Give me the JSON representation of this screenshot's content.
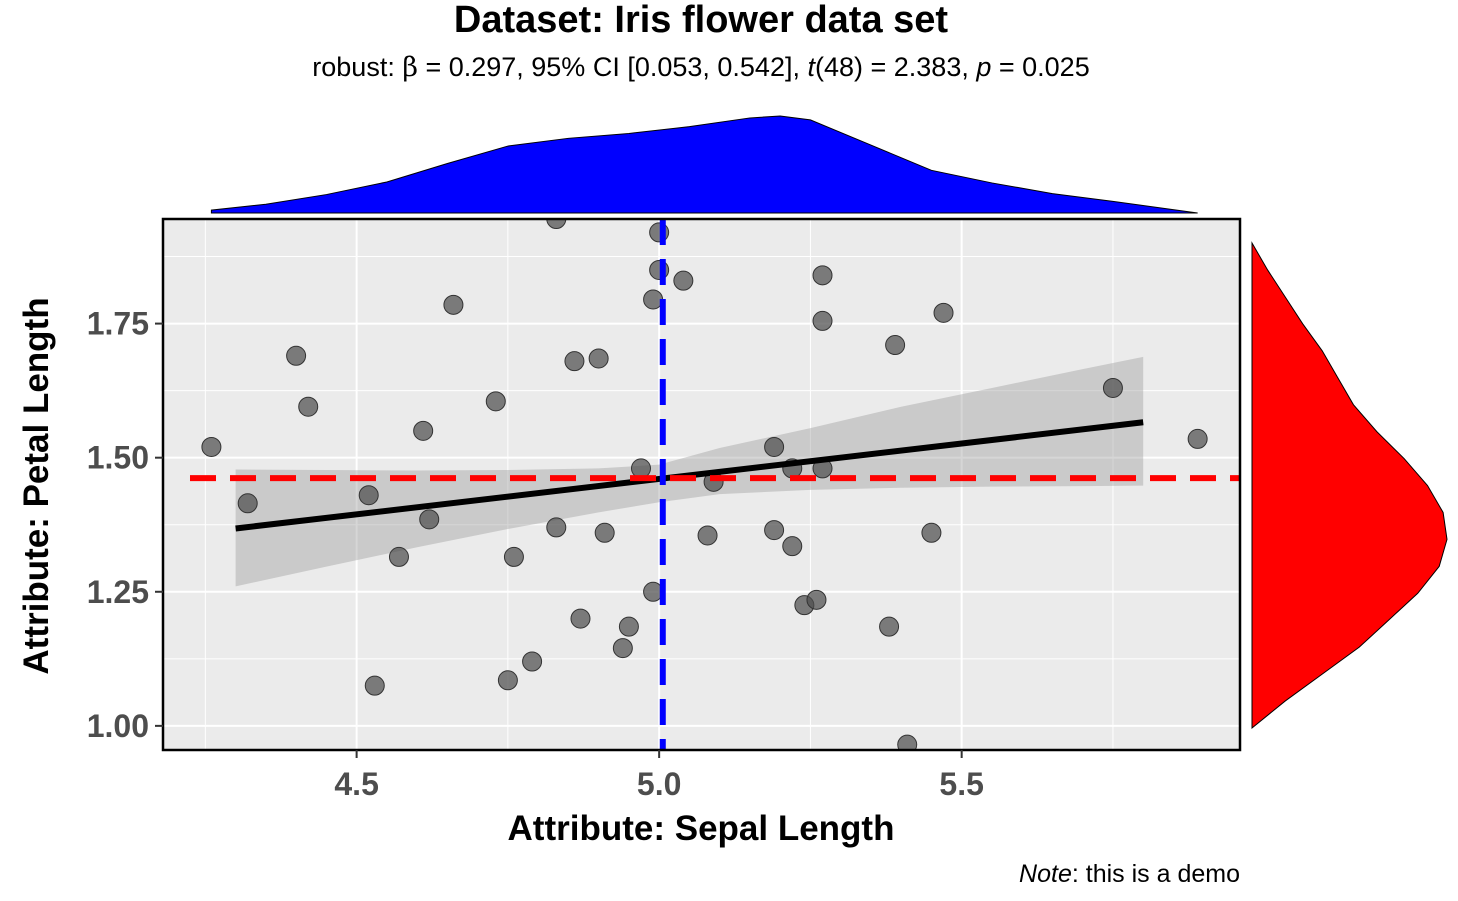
{
  "chart_data": {
    "type": "scatter",
    "title": "Dataset: Iris flower data set",
    "subtitle": {
      "prefix": "robust: ",
      "beta_symbol": "β",
      "mid": " = 0.297, 95% CI [0.053, 0.542], ",
      "t": "t",
      "t_tail": "(48) = 2.383, ",
      "p": "p",
      "p_tail": " = 0.025"
    },
    "xlabel": "Attribute: Sepal Length",
    "ylabel": "Attribute: Petal Length",
    "caption": {
      "note": "Note",
      "rest": ": this is a demo"
    },
    "xlim": [
      4.18,
      5.96
    ],
    "ylim": [
      0.955,
      1.945
    ],
    "x_ticks": [
      4.5,
      5.0,
      5.5
    ],
    "x_tick_labels": [
      "4.5",
      "5.0",
      "5.5"
    ],
    "y_ticks": [
      1.0,
      1.25,
      1.5,
      1.75
    ],
    "y_tick_labels": [
      "1.00",
      "1.25",
      "1.50",
      "1.75"
    ],
    "grid": true,
    "points": [
      {
        "x": 4.26,
        "y": 1.52
      },
      {
        "x": 4.32,
        "y": 1.415
      },
      {
        "x": 4.4,
        "y": 1.69
      },
      {
        "x": 4.42,
        "y": 1.595
      },
      {
        "x": 4.52,
        "y": 1.43
      },
      {
        "x": 4.53,
        "y": 1.075
      },
      {
        "x": 4.57,
        "y": 1.315
      },
      {
        "x": 4.61,
        "y": 1.55
      },
      {
        "x": 4.62,
        "y": 1.385
      },
      {
        "x": 4.66,
        "y": 1.785
      },
      {
        "x": 4.73,
        "y": 1.605
      },
      {
        "x": 4.75,
        "y": 1.085
      },
      {
        "x": 4.76,
        "y": 1.315
      },
      {
        "x": 4.79,
        "y": 1.12
      },
      {
        "x": 4.83,
        "y": 1.945
      },
      {
        "x": 4.83,
        "y": 1.37
      },
      {
        "x": 4.86,
        "y": 1.68
      },
      {
        "x": 4.87,
        "y": 1.2
      },
      {
        "x": 4.9,
        "y": 1.685
      },
      {
        "x": 4.91,
        "y": 1.36
      },
      {
        "x": 4.94,
        "y": 1.145
      },
      {
        "x": 4.95,
        "y": 1.185
      },
      {
        "x": 4.97,
        "y": 1.48
      },
      {
        "x": 4.99,
        "y": 1.25
      },
      {
        "x": 4.99,
        "y": 1.795
      },
      {
        "x": 5.0,
        "y": 1.85
      },
      {
        "x": 5.0,
        "y": 1.92
      },
      {
        "x": 5.04,
        "y": 1.83
      },
      {
        "x": 5.09,
        "y": 1.455
      },
      {
        "x": 5.08,
        "y": 1.355
      },
      {
        "x": 5.19,
        "y": 1.52
      },
      {
        "x": 5.19,
        "y": 1.365
      },
      {
        "x": 5.22,
        "y": 1.48
      },
      {
        "x": 5.22,
        "y": 1.335
      },
      {
        "x": 5.24,
        "y": 1.225
      },
      {
        "x": 5.26,
        "y": 1.235
      },
      {
        "x": 5.27,
        "y": 1.48
      },
      {
        "x": 5.27,
        "y": 1.84
      },
      {
        "x": 5.27,
        "y": 1.755
      },
      {
        "x": 5.38,
        "y": 1.185
      },
      {
        "x": 5.39,
        "y": 1.71
      },
      {
        "x": 5.41,
        "y": 0.965
      },
      {
        "x": 5.45,
        "y": 1.36
      },
      {
        "x": 5.47,
        "y": 1.77
      },
      {
        "x": 5.75,
        "y": 1.63
      },
      {
        "x": 5.89,
        "y": 1.535
      }
    ],
    "fit_line": {
      "x": [
        4.3,
        5.8
      ],
      "y": [
        1.368,
        1.566
      ]
    },
    "confidence_band": {
      "x": [
        4.3,
        4.45,
        4.6,
        4.75,
        4.9,
        5.0,
        5.1,
        5.25,
        5.4,
        5.55,
        5.7,
        5.8
      ],
      "upper": [
        1.478,
        1.477,
        1.476,
        1.477,
        1.48,
        1.487,
        1.518,
        1.555,
        1.595,
        1.63,
        1.665,
        1.688
      ],
      "lower": [
        1.26,
        1.297,
        1.333,
        1.367,
        1.398,
        1.417,
        1.432,
        1.44,
        1.444,
        1.446,
        1.447,
        1.448
      ]
    },
    "mean_lines": {
      "x_mean": 5.006,
      "y_mean": 1.462,
      "x_color": "#0000ff",
      "y_color": "#ff0000"
    },
    "marginal_x_density": {
      "color": "#0000ff",
      "x": [
        4.26,
        4.35,
        4.45,
        4.55,
        4.65,
        4.75,
        4.85,
        4.95,
        5.05,
        5.15,
        5.2,
        5.25,
        5.35,
        5.45,
        5.55,
        5.65,
        5.75,
        5.89
      ],
      "density": [
        0.03,
        0.09,
        0.19,
        0.32,
        0.51,
        0.69,
        0.77,
        0.82,
        0.89,
        0.98,
        1.0,
        0.96,
        0.7,
        0.44,
        0.31,
        0.2,
        0.12,
        0.0
      ]
    },
    "marginal_y_density": {
      "color": "#ff0000",
      "y": [
        1.0,
        1.05,
        1.1,
        1.15,
        1.2,
        1.25,
        1.3,
        1.35,
        1.4,
        1.45,
        1.5,
        1.55,
        1.6,
        1.65,
        1.7,
        1.75,
        1.8,
        1.85,
        1.9
      ],
      "density": [
        0.0,
        0.17,
        0.36,
        0.55,
        0.7,
        0.85,
        0.96,
        1.0,
        0.98,
        0.9,
        0.78,
        0.64,
        0.52,
        0.44,
        0.36,
        0.26,
        0.17,
        0.08,
        0.0
      ]
    }
  }
}
